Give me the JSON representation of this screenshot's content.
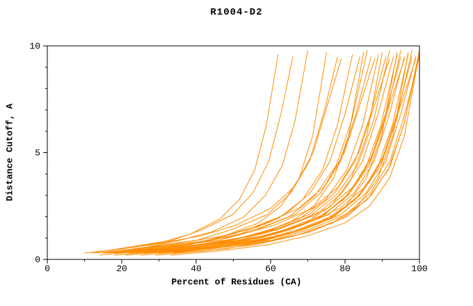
{
  "page": {
    "background": "#ffffff"
  },
  "chart_data": {
    "type": "line",
    "title": "R1004-D2",
    "xlabel": "Percent of Residues (CA)",
    "ylabel": "Distance Cutoff, A",
    "xlim": [
      0,
      100
    ],
    "ylim": [
      0,
      10
    ],
    "grid": false,
    "legend_position": "none",
    "series_color": "#ff8c00",
    "axis_color": "#000000",
    "x_ticks": {
      "major": [
        0,
        20,
        40,
        60,
        80,
        100
      ],
      "minor_step": 10
    },
    "y_ticks": {
      "major": [
        0,
        5,
        10
      ],
      "minor_step": 1
    },
    "t_anchors": [
      0,
      0.2,
      0.4,
      0.55,
      0.7,
      0.8,
      0.88,
      0.94,
      1
    ],
    "series": [
      {
        "x_start": 10,
        "x_end": 62,
        "y_anchors": [
          0.3,
          0.5,
          0.8,
          1.2,
          1.9,
          2.8,
          4.2,
          6.3,
          9.6
        ]
      },
      {
        "x_start": 12,
        "x_end": 66,
        "y_anchors": [
          0.3,
          0.6,
          0.9,
          1.4,
          2.1,
          3.1,
          4.6,
          6.8,
          9.5
        ]
      },
      {
        "x_start": 13,
        "x_end": 70,
        "y_anchors": [
          0.3,
          0.5,
          0.9,
          1.3,
          2.0,
          3.0,
          4.4,
          6.5,
          9.8
        ]
      },
      {
        "x_start": 14,
        "x_end": 75,
        "y_anchors": [
          0.2,
          0.4,
          0.7,
          1.1,
          1.7,
          2.5,
          3.8,
          5.8,
          9.7
        ]
      },
      {
        "x_start": 15,
        "x_end": 78,
        "y_anchors": [
          0.3,
          0.6,
          0.9,
          1.4,
          2.1,
          3.1,
          4.6,
          6.8,
          9.5
        ]
      },
      {
        "x_start": 16,
        "x_end": 79,
        "y_anchors": [
          0.4,
          0.7,
          1.1,
          1.6,
          2.4,
          3.4,
          5.0,
          7.2,
          9.4
        ]
      },
      {
        "x_start": 15,
        "x_end": 82,
        "y_anchors": [
          0.3,
          0.5,
          0.8,
          1.2,
          1.9,
          2.8,
          4.2,
          6.3,
          9.6
        ]
      },
      {
        "x_start": 17,
        "x_end": 84,
        "y_anchors": [
          0.3,
          0.6,
          0.9,
          1.4,
          2.1,
          3.1,
          4.6,
          6.8,
          9.5
        ]
      },
      {
        "x_start": 18,
        "x_end": 85,
        "y_anchors": [
          0.2,
          0.4,
          0.7,
          1.1,
          1.7,
          2.5,
          3.8,
          5.8,
          9.7
        ]
      },
      {
        "x_start": 16,
        "x_end": 86,
        "y_anchors": [
          0.3,
          0.5,
          0.9,
          1.3,
          2.0,
          3.0,
          4.4,
          6.5,
          9.8
        ]
      },
      {
        "x_start": 19,
        "x_end": 87,
        "y_anchors": [
          0.3,
          0.6,
          0.9,
          1.4,
          2.1,
          3.1,
          4.6,
          6.8,
          9.5
        ]
      },
      {
        "x_start": 20,
        "x_end": 88,
        "y_anchors": [
          0.4,
          0.7,
          1.1,
          1.6,
          2.4,
          3.4,
          5.0,
          7.2,
          9.4
        ]
      },
      {
        "x_start": 18,
        "x_end": 89,
        "y_anchors": [
          0.3,
          0.5,
          0.8,
          1.2,
          1.9,
          2.8,
          4.2,
          6.3,
          9.6
        ]
      },
      {
        "x_start": 21,
        "x_end": 90,
        "y_anchors": [
          0.2,
          0.4,
          0.7,
          1.1,
          1.7,
          2.5,
          3.8,
          5.8,
          9.7
        ]
      },
      {
        "x_start": 22,
        "x_end": 91,
        "y_anchors": [
          0.3,
          0.6,
          0.9,
          1.4,
          2.1,
          3.1,
          4.6,
          6.8,
          9.5
        ]
      },
      {
        "x_start": 20,
        "x_end": 92,
        "y_anchors": [
          0.3,
          0.5,
          0.9,
          1.3,
          2.0,
          3.0,
          4.4,
          6.5,
          9.8
        ]
      },
      {
        "x_start": 23,
        "x_end": 92,
        "y_anchors": [
          0.4,
          0.7,
          1.1,
          1.6,
          2.4,
          3.4,
          5.0,
          7.2,
          9.4
        ]
      },
      {
        "x_start": 24,
        "x_end": 93,
        "y_anchors": [
          0.3,
          0.6,
          0.9,
          1.4,
          2.1,
          3.1,
          4.6,
          6.8,
          9.5
        ]
      },
      {
        "x_start": 22,
        "x_end": 94,
        "y_anchors": [
          0.3,
          0.5,
          0.8,
          1.2,
          1.9,
          2.8,
          4.2,
          6.3,
          9.6
        ]
      },
      {
        "x_start": 25,
        "x_end": 94,
        "y_anchors": [
          0.2,
          0.4,
          0.7,
          1.1,
          1.7,
          2.5,
          3.8,
          5.8,
          9.7
        ]
      },
      {
        "x_start": 26,
        "x_end": 95,
        "y_anchors": [
          0.3,
          0.6,
          0.9,
          1.4,
          2.1,
          3.1,
          4.6,
          6.8,
          9.5
        ]
      },
      {
        "x_start": 24,
        "x_end": 95,
        "y_anchors": [
          0.3,
          0.5,
          0.9,
          1.3,
          2.0,
          3.0,
          4.4,
          6.5,
          9.8
        ]
      },
      {
        "x_start": 27,
        "x_end": 96,
        "y_anchors": [
          0.4,
          0.7,
          1.1,
          1.6,
          2.4,
          3.4,
          5.0,
          7.2,
          9.4
        ]
      },
      {
        "x_start": 28,
        "x_end": 96,
        "y_anchors": [
          0.3,
          0.6,
          0.9,
          1.4,
          2.1,
          3.1,
          4.6,
          6.8,
          9.5
        ]
      },
      {
        "x_start": 26,
        "x_end": 97,
        "y_anchors": [
          0.3,
          0.5,
          0.8,
          1.2,
          1.9,
          2.8,
          4.2,
          6.3,
          9.6
        ]
      },
      {
        "x_start": 29,
        "x_end": 97,
        "y_anchors": [
          0.2,
          0.4,
          0.7,
          1.1,
          1.7,
          2.5,
          3.8,
          5.8,
          9.7
        ]
      },
      {
        "x_start": 30,
        "x_end": 98,
        "y_anchors": [
          0.3,
          0.6,
          0.9,
          1.4,
          2.1,
          3.1,
          4.6,
          6.8,
          9.5
        ]
      },
      {
        "x_start": 28,
        "x_end": 98,
        "y_anchors": [
          0.3,
          0.5,
          0.9,
          1.3,
          2.0,
          3.0,
          4.4,
          6.5,
          9.8
        ]
      },
      {
        "x_start": 31,
        "x_end": 99,
        "y_anchors": [
          0.4,
          0.7,
          1.1,
          1.6,
          2.4,
          3.4,
          5.0,
          7.2,
          9.4
        ]
      },
      {
        "x_start": 32,
        "x_end": 99,
        "y_anchors": [
          0.3,
          0.6,
          0.9,
          1.4,
          2.1,
          3.1,
          4.6,
          6.8,
          9.5
        ]
      },
      {
        "x_start": 30,
        "x_end": 100,
        "y_anchors": [
          0.3,
          0.5,
          0.8,
          1.2,
          1.9,
          2.8,
          4.2,
          6.3,
          9.6
        ]
      },
      {
        "x_start": 33,
        "x_end": 100,
        "y_anchors": [
          0.2,
          0.4,
          0.7,
          1.1,
          1.7,
          2.5,
          3.8,
          5.8,
          9.7
        ]
      },
      {
        "x_start": 34,
        "x_end": 100,
        "y_anchors": [
          0.3,
          0.6,
          0.9,
          1.4,
          2.1,
          3.1,
          4.6,
          6.8,
          9.5
        ]
      },
      {
        "x_start": 35,
        "x_end": 100,
        "y_anchors": [
          0.3,
          0.5,
          0.9,
          1.3,
          2.0,
          3.0,
          4.4,
          6.5,
          9.8
        ]
      }
    ]
  }
}
